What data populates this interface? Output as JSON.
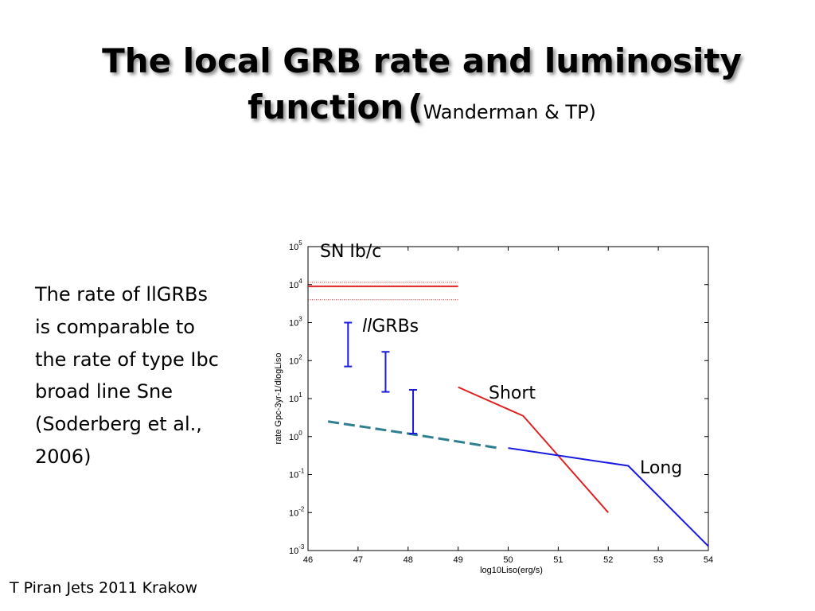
{
  "slide": {
    "title_line1": "The local GRB rate and luminosity",
    "title_line2": "function",
    "title_open_paren": "(",
    "title_cite": "Wanderman & TP)",
    "side_text": "The rate of llGRBs is comparable to the rate of type Ibc broad line Sne (Soderberg et al., 2006)",
    "footer": "T Piran Jets 2011 Krakow"
  },
  "chart_data": {
    "type": "line",
    "xlabel": "log10Liso(erg/s)",
    "ylabel": "rate Gpc-3yr-1/dlogLiso",
    "xlim": [
      46,
      54
    ],
    "ylim": [
      0.001,
      100000
    ],
    "y_scale": "log",
    "x_ticks": [
      "46",
      "47",
      "48",
      "49",
      "50",
      "51",
      "52",
      "53",
      "54"
    ],
    "y_ticks": [
      {
        "base": "10",
        "exp": "-3",
        "value": 0.001
      },
      {
        "base": "10",
        "exp": "-2",
        "value": 0.01
      },
      {
        "base": "10",
        "exp": "-1",
        "value": 0.1
      },
      {
        "base": "10",
        "exp": "0",
        "value": 1
      },
      {
        "base": "10",
        "exp": "1",
        "value": 10
      },
      {
        "base": "10",
        "exp": "2",
        "value": 100
      },
      {
        "base": "10",
        "exp": "3",
        "value": 1000
      },
      {
        "base": "10",
        "exp": "4",
        "value": 10000
      },
      {
        "base": "10",
        "exp": "5",
        "value": 100000
      }
    ],
    "series": [
      {
        "key": "sn",
        "color": "#e02020",
        "style": "solid",
        "x": [
          46,
          49
        ],
        "y": [
          9000,
          9000
        ]
      },
      {
        "key": "sn_upper",
        "color": "#e02020",
        "style": "dotted",
        "x": [
          46,
          49
        ],
        "y": [
          11500,
          11500
        ]
      },
      {
        "key": "sn_lower",
        "color": "#e02020",
        "style": "dotted",
        "x": [
          46,
          49
        ],
        "y": [
          4000,
          4000
        ]
      },
      {
        "key": "short",
        "color": "#e02020",
        "style": "solid",
        "x": [
          49,
          50.3,
          52
        ],
        "y": [
          20,
          3.5,
          0.01
        ]
      },
      {
        "key": "long",
        "color": "#1a1ae0",
        "style": "solid",
        "x": [
          50,
          52.4,
          54
        ],
        "y": [
          0.5,
          0.17,
          0.0013
        ]
      },
      {
        "key": "ll_extrap",
        "color": "#2f7f8f",
        "style": "dashed",
        "x": [
          46.4,
          48,
          49.8
        ],
        "y": [
          2.5,
          1.2,
          0.5
        ]
      }
    ],
    "error_bars": [
      {
        "x": 46.8,
        "ylow": 70,
        "yhigh": 1000,
        "color": "#1a1ae0"
      },
      {
        "x": 47.55,
        "ylow": 15,
        "yhigh": 170,
        "color": "#1a1ae0"
      },
      {
        "x": 48.1,
        "ylow": 1.2,
        "yhigh": 17,
        "color": "#1a1ae0"
      }
    ],
    "annotations": {
      "sn": "SN Ib/c",
      "ll_prefix": "ll",
      "ll_suffix": "GRBs",
      "short": "Short",
      "long": "Long"
    }
  }
}
